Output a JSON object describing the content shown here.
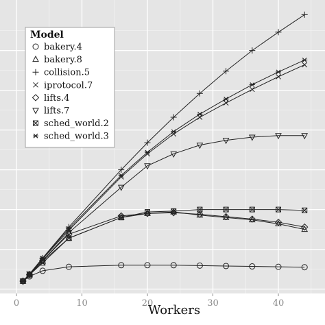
{
  "chart_data": {
    "type": "line",
    "xlabel": "Workers",
    "ylabel": "",
    "title": "",
    "xlim": [
      -1,
      47
    ],
    "ylim": [
      0,
      33
    ],
    "x_ticks": [
      0,
      10,
      20,
      30,
      40
    ],
    "x_tick_labels": [
      "0",
      "10",
      "20",
      "30",
      "40"
    ],
    "grid": true,
    "legend": {
      "title": "Model",
      "position": "top-left"
    },
    "colors": {
      "panel": "#e5e5e5",
      "grid_major": "#ffffff",
      "grid_minor": "#f2f2f2",
      "line": "#222222"
    },
    "series": [
      {
        "name": "bakery.4",
        "marker": "circle",
        "x": [
          1,
          2,
          4,
          8,
          16,
          20,
          24,
          28,
          32,
          36,
          40,
          44
        ],
        "y": [
          1.0,
          1.6,
          2.3,
          2.8,
          3.0,
          3.0,
          3.0,
          2.95,
          2.9,
          2.85,
          2.8,
          2.75
        ]
      },
      {
        "name": "bakery.8",
        "marker": "triangle-up",
        "x": [
          1,
          2,
          4,
          8,
          16,
          20,
          24,
          28,
          32,
          36,
          40,
          44
        ],
        "y": [
          1.0,
          1.8,
          3.5,
          6.4,
          9.0,
          9.5,
          9.7,
          9.3,
          9.0,
          8.7,
          8.2,
          7.5
        ]
      },
      {
        "name": "collision.5",
        "marker": "plus",
        "x": [
          1,
          2,
          4,
          8,
          16,
          20,
          24,
          28,
          32,
          36,
          40,
          44
        ],
        "y": [
          1.0,
          1.9,
          3.9,
          7.8,
          15.0,
          18.4,
          21.6,
          24.6,
          27.4,
          30.0,
          32.3,
          34.5
        ]
      },
      {
        "name": "iprotocol.7",
        "marker": "cross",
        "x": [
          1,
          2,
          4,
          8,
          16,
          20,
          24,
          28,
          32,
          36,
          40,
          44
        ],
        "y": [
          1.0,
          1.9,
          3.8,
          7.4,
          14.1,
          17.0,
          19.5,
          21.6,
          23.4,
          25.1,
          26.7,
          28.2
        ]
      },
      {
        "name": "lifts.4",
        "marker": "diamond",
        "x": [
          1,
          2,
          4,
          8,
          16,
          20,
          24,
          28,
          32,
          36,
          40,
          44
        ],
        "y": [
          1.0,
          1.8,
          3.6,
          6.9,
          9.2,
          9.5,
          9.6,
          9.4,
          9.1,
          8.8,
          8.4,
          7.8
        ]
      },
      {
        "name": "lifts.7",
        "marker": "triangle-down",
        "x": [
          1,
          2,
          4,
          8,
          16,
          20,
          24,
          28,
          32,
          36,
          40,
          44
        ],
        "y": [
          1.0,
          1.9,
          3.6,
          7.1,
          12.8,
          15.5,
          17.0,
          18.1,
          18.7,
          19.1,
          19.3,
          19.3
        ]
      },
      {
        "name": "sched_world.2",
        "marker": "boxed-x",
        "x": [
          1,
          2,
          4,
          8,
          16,
          20,
          24,
          28,
          32,
          36,
          40,
          44
        ],
        "y": [
          1.0,
          1.8,
          3.3,
          6.4,
          9.0,
          9.7,
          9.8,
          10.0,
          10.0,
          10.0,
          10.0,
          9.9
        ]
      },
      {
        "name": "sched_world.3",
        "marker": "asterisk",
        "x": [
          1,
          2,
          4,
          8,
          16,
          20,
          24,
          28,
          32,
          36,
          40,
          44
        ],
        "y": [
          1.0,
          1.9,
          3.9,
          7.6,
          14.3,
          17.2,
          19.8,
          22.0,
          23.9,
          25.7,
          27.3,
          28.8
        ]
      }
    ]
  }
}
